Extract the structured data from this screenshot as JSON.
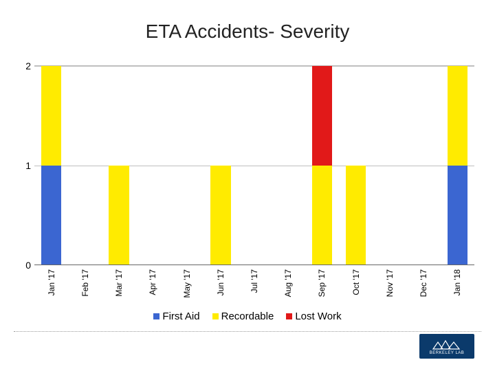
{
  "title": "ETA Accidents- Severity",
  "chart": {
    "type": "stacked-bar",
    "ylim": [
      0,
      2
    ],
    "yticks": [
      0,
      1,
      2
    ],
    "grid_color": "#bfbfbf",
    "axis_color": "#666666",
    "background_color": "#ffffff",
    "categories": [
      "Jan '17",
      "Feb '17",
      "Mar '17",
      "Apr '17",
      "May '17",
      "Jun '17",
      "Jul '17",
      "Aug '17",
      "Sep '17",
      "Oct '17",
      "Nov '17",
      "Dec '17",
      "Jan '18"
    ],
    "series": [
      {
        "key": "first_aid",
        "label": "First Aid",
        "color": "#3b66d1"
      },
      {
        "key": "recordable",
        "label": "Recordable",
        "color": "#ffeb00"
      },
      {
        "key": "lost_work",
        "label": "Lost Work",
        "color": "#e11919"
      }
    ],
    "data": {
      "first_aid": [
        1,
        0,
        0,
        0,
        0,
        0,
        0,
        0,
        0,
        0,
        0,
        0,
        1
      ],
      "recordable": [
        1,
        0,
        1,
        0,
        0,
        1,
        0,
        0,
        1,
        1,
        0,
        0,
        1
      ],
      "lost_work": [
        0,
        0,
        0,
        0,
        0,
        0,
        0,
        0,
        1,
        0,
        0,
        0,
        0
      ]
    },
    "label_fontsize": 12,
    "tick_fontsize": 14,
    "title_fontsize": 28
  },
  "legend": {
    "items": [
      "First Aid",
      "Recordable",
      "Lost Work"
    ]
  },
  "logo_text": "BERKELEY LAB"
}
